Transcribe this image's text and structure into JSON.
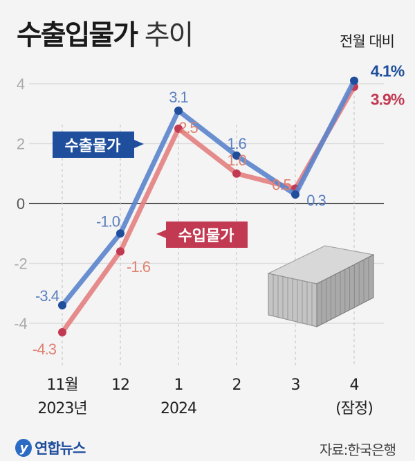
{
  "title": {
    "bold": "수출입물가",
    "light": "추이"
  },
  "unit": "전월 대비",
  "source": "자료:한국은행",
  "logo": "연합뉴스",
  "colors": {
    "export_line": "#5b84cc",
    "export_dot": "#1f4e9c",
    "import_line": "#e48080",
    "import_dot": "#c23a52"
  },
  "chart_data": {
    "type": "line",
    "categories": [
      "11월\n2023년",
      "12",
      "1\n2024",
      "2",
      "3",
      "4\n(잠정)"
    ],
    "ylim": [
      -5,
      4.6
    ],
    "yticks": [
      4,
      2,
      0,
      -2,
      -4
    ],
    "grid": true,
    "series": [
      {
        "name": "수출물가",
        "values": [
          -3.4,
          -1.0,
          3.1,
          1.6,
          0.3,
          4.1
        ],
        "labels": [
          "-3.4",
          "-1.0",
          "3.1",
          "1.6",
          "0.3",
          "4.1%"
        ]
      },
      {
        "name": "수입물가",
        "values": [
          -4.3,
          -1.6,
          2.5,
          1.0,
          0.5,
          3.9
        ],
        "labels": [
          "-4.3",
          "-1.6",
          "2.5",
          "1.0",
          "0.5",
          "3.9%"
        ]
      }
    ]
  }
}
